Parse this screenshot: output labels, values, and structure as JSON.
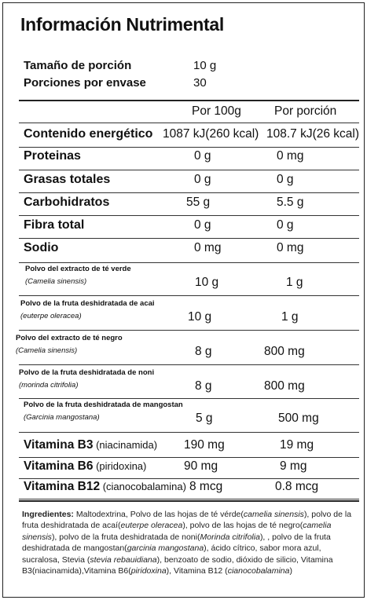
{
  "title": "Información Nutrimental",
  "serving": {
    "size_label": "Tamaño de porción",
    "size_value": "10 g",
    "servings_label": "Porciones por envase",
    "servings_value": "30"
  },
  "columns": {
    "per100": "Por 100g",
    "perServing": "Por porción"
  },
  "nutrients": [
    {
      "label": "Contenido energético",
      "per100": "1087 kJ(260 kcal)",
      "perServing": "108.7 kJ(26 kcal)"
    },
    {
      "label": "Proteinas",
      "per100": "0 g",
      "perServing": "0 mg"
    },
    {
      "label": "Grasas totales",
      "per100": "0 g",
      "perServing": "0 g"
    },
    {
      "label": "Carbohidratos",
      "per100": "55 g",
      "perServing": "5.5 g"
    },
    {
      "label": "Fibra total",
      "per100": "0 g",
      "perServing": "0 g"
    },
    {
      "label": "Sodio",
      "per100": "0 mg",
      "perServing": "0 mg"
    }
  ],
  "extracts": [
    {
      "name": "Polvo del extracto de té verde",
      "sci": "(Camelia sinensis)",
      "per100": "10 g",
      "perServing": "1 g"
    },
    {
      "name": "Polvo de la fruta deshidratada de acai",
      "sci": "(euterpe oleracea)",
      "per100": "10 g",
      "perServing": "1 g"
    },
    {
      "name": "Polvo del extracto de té negro",
      "sci": "(Camelia sinensis)",
      "per100": "8 g",
      "perServing": "800 mg"
    },
    {
      "name": "Polvo de la fruta deshidratada de noni",
      "sci": "(morinda citrifolia)",
      "per100": "8 g",
      "perServing": "800 mg"
    },
    {
      "name": "Polvo de la fruta deshidratada de mangostan",
      "sci": "(Garcinia mangostana)",
      "per100": "5 g",
      "perServing": "500 mg"
    }
  ],
  "vitamins": [
    {
      "name": "Vitamina B3",
      "paren": "(niacinamida)",
      "per100": "190 mg",
      "perServing": "19 mg"
    },
    {
      "name": "Vitamina B6",
      "paren": "(piridoxina)",
      "per100": "90 mg",
      "perServing": "9 mg"
    },
    {
      "name": "Vitamina B12",
      "paren": "(cianocobalamina)",
      "per100": "8 mcg",
      "perServing": "0.8  mcg"
    }
  ],
  "ingredients": {
    "label": "Ingredientes:",
    "parts": [
      {
        "t": " Maltodextrina, Polvo de las hojas de té vérde(",
        "i": false
      },
      {
        "t": "camelia sinensis",
        "i": true
      },
      {
        "t": "), polvo de la fruta deshidratada de acaí(",
        "i": false
      },
      {
        "t": "euterpe oleracea",
        "i": true
      },
      {
        "t": "), polvo de las hojas de té negro(",
        "i": false
      },
      {
        "t": "camelia sinensis",
        "i": true
      },
      {
        "t": "),  polvo de la fruta deshidratada de noni(",
        "i": false
      },
      {
        "t": "Morinda citrifolia",
        "i": true
      },
      {
        "t": "), , polvo de la fruta deshidratada de mangostan(",
        "i": false
      },
      {
        "t": "garcinia mangostana",
        "i": true
      },
      {
        "t": "), ácido cítrico,  sabor mora azul, sucralosa, Stevia (",
        "i": false
      },
      {
        "t": "stevia rebauidiana",
        "i": true
      },
      {
        "t": "),  benzoato de sodio, dióxido de silicio, Vitamina B3(niacinamida),Vitamina B6(",
        "i": false
      },
      {
        "t": "piridoxina",
        "i": true
      },
      {
        "t": "), Vitamina B12 (",
        "i": false
      },
      {
        "t": "cianocobalamina",
        "i": true
      },
      {
        "t": ")",
        "i": false
      }
    ]
  }
}
